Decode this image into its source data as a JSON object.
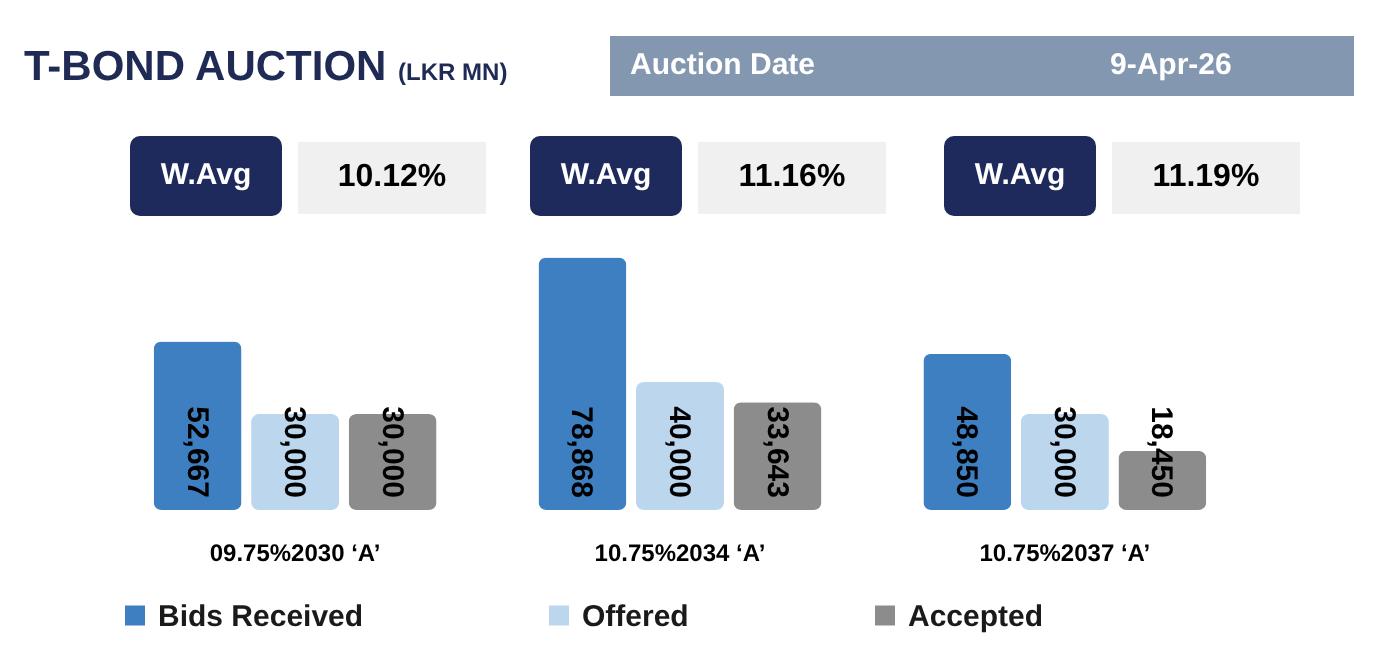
{
  "chart_data": {
    "type": "bar",
    "title": "T-BOND AUCTION",
    "subtitle": "(LKR MN)",
    "annotations": [
      "Auction Date",
      "9-Apr-26",
      "W.Avg",
      "10.12%",
      "W.Avg",
      "11.16%",
      "W.Avg",
      "11.19%"
    ],
    "categories": [
      "09.75%2030 ‘A’",
      "10.75%2034 ‘A’",
      "10.75%2037 ‘A’"
    ],
    "series": [
      {
        "name": "Bids Received",
        "color": "#3d7fc1",
        "values": [
          52667,
          78868,
          48850
        ],
        "value_labels": [
          "52,667",
          "78,868",
          "48,850"
        ]
      },
      {
        "name": "Offered",
        "color": "#bcd6ee",
        "values": [
          30000,
          40000,
          30000
        ],
        "value_labels": [
          "30,000",
          "40,000",
          "30,000"
        ]
      },
      {
        "name": "Accepted",
        "color": "#8c8c8c",
        "values": [
          30000,
          33643,
          18450
        ],
        "value_labels": [
          "30,000",
          "33,643",
          "18,450"
        ]
      }
    ],
    "ylim": [
      0,
      80000
    ],
    "tick_labels": "x",
    "legend": "bottom"
  }
}
